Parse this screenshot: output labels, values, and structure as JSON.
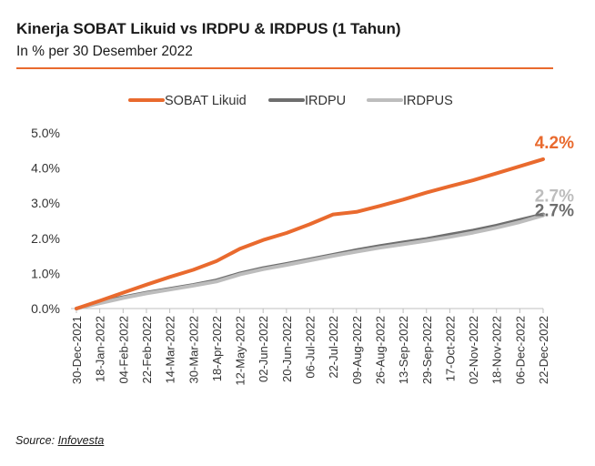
{
  "chart_data": {
    "type": "line",
    "title": "Kinerja SOBAT Likuid vs IRDPU & IRDPUS (1 Tahun)",
    "subtitle": "In % per 30 Desember 2022",
    "source_label": "Source:",
    "source_name": "Infovesta",
    "categories": [
      "30-Dec-2021",
      "18-Jan-2022",
      "04-Feb-2022",
      "22-Feb-2022",
      "14-Mar-2022",
      "30-Mar-2022",
      "18-Apr-2022",
      "12-May-2022",
      "02-Jun-2022",
      "20-Jun-2022",
      "06-Jul-2022",
      "22-Jul-2022",
      "09-Aug-2022",
      "26-Aug-2022",
      "13-Sep-2022",
      "29-Sep-2022",
      "17-Oct-2022",
      "02-Nov-2022",
      "18-Nov-2022",
      "06-Dec-2022",
      "22-Dec-2022"
    ],
    "y_ticks": [
      "0.0%",
      "1.0%",
      "2.0%",
      "3.0%",
      "4.0%",
      "5.0%"
    ],
    "ylim": [
      0,
      5
    ],
    "series": [
      {
        "name": "SOBAT Likuid",
        "color": "#E96A2E",
        "values": [
          0.0,
          0.22,
          0.45,
          0.68,
          0.9,
          1.1,
          1.35,
          1.7,
          1.95,
          2.15,
          2.4,
          2.68,
          2.75,
          2.92,
          3.1,
          3.3,
          3.48,
          3.65,
          3.85,
          4.05,
          4.25
        ],
        "end_label": "4.2%"
      },
      {
        "name": "IRDPU",
        "color": "#6E6E6E",
        "values": [
          0.0,
          0.17,
          0.32,
          0.45,
          0.56,
          0.67,
          0.8,
          1.0,
          1.15,
          1.27,
          1.4,
          1.53,
          1.66,
          1.78,
          1.88,
          1.98,
          2.1,
          2.22,
          2.36,
          2.52,
          2.68
        ],
        "end_label": "2.7%"
      },
      {
        "name": "IRDPUS",
        "color": "#BDBDBD",
        "values": [
          0.0,
          0.15,
          0.3,
          0.43,
          0.54,
          0.65,
          0.77,
          0.97,
          1.12,
          1.24,
          1.37,
          1.5,
          1.62,
          1.73,
          1.83,
          1.93,
          2.04,
          2.16,
          2.3,
          2.46,
          2.65
        ],
        "end_label": "2.7%"
      }
    ],
    "legend_position": "top-center",
    "grid": false
  }
}
